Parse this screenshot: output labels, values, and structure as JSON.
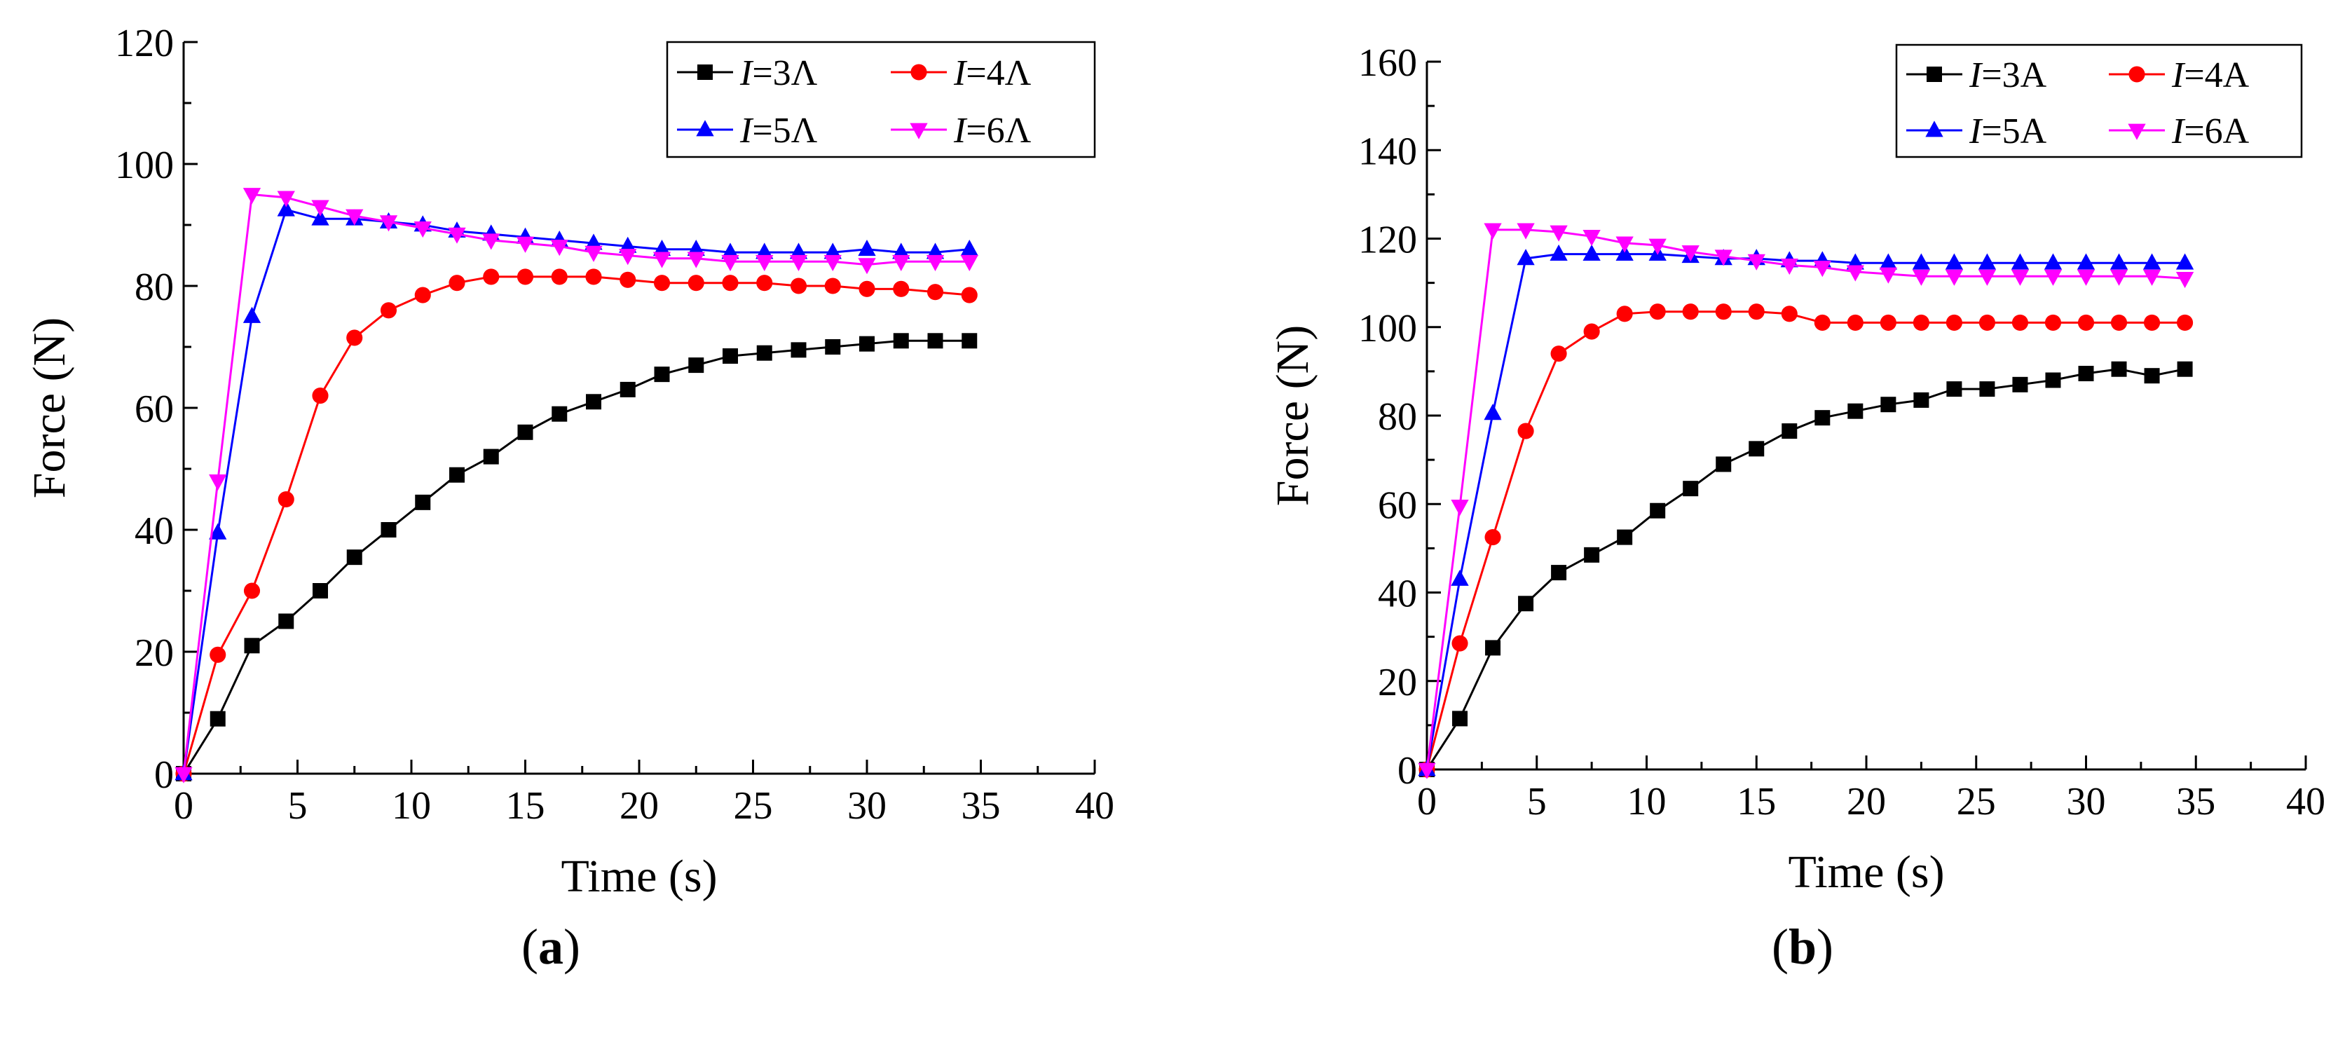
{
  "captions": {
    "a_open": "(",
    "a_letter": "a",
    "a_close": ")",
    "b_open": "(",
    "b_letter": "b",
    "b_close": ")"
  },
  "chart_data": [
    {
      "type": "line",
      "panel": "a",
      "xlabel": "Time (s)",
      "ylabel": "Force (N)",
      "xlim": [
        0,
        40
      ],
      "ylim": [
        0,
        120
      ],
      "xticks": [
        0,
        5,
        10,
        15,
        20,
        25,
        30,
        35,
        40
      ],
      "yticks": [
        0,
        20,
        40,
        60,
        80,
        100,
        120
      ],
      "legend_position": "top-right",
      "grid": false,
      "series": [
        {
          "name": "I=3Λ",
          "label_var": "I",
          "label_rest": "=3Λ",
          "color": "#000000",
          "marker": "square",
          "x": [
            0,
            1.5,
            3,
            4.5,
            6,
            7.5,
            9,
            10.5,
            12,
            13.5,
            15,
            16.5,
            18,
            19.5,
            21,
            22.5,
            24,
            25.5,
            27,
            28.5,
            30,
            31.5,
            33,
            34.5
          ],
          "y": [
            0,
            9,
            21,
            25,
            30,
            35.5,
            40,
            44.5,
            49,
            52,
            56,
            59,
            61,
            63,
            65.5,
            67,
            68.5,
            69,
            69.5,
            70,
            70.5,
            71,
            71,
            71
          ]
        },
        {
          "name": "I=4Λ",
          "label_var": "I",
          "label_rest": "=4Λ",
          "color": "#ff0000",
          "marker": "circle",
          "x": [
            0,
            1.5,
            3,
            4.5,
            6,
            7.5,
            9,
            10.5,
            12,
            13.5,
            15,
            16.5,
            18,
            19.5,
            21,
            22.5,
            24,
            25.5,
            27,
            28.5,
            30,
            31.5,
            33,
            34.5
          ],
          "y": [
            0,
            19.5,
            30,
            45,
            62,
            71.5,
            76,
            78.5,
            80.5,
            81.5,
            81.5,
            81.5,
            81.5,
            81,
            80.5,
            80.5,
            80.5,
            80.5,
            80,
            80,
            79.5,
            79.5,
            79,
            78.5
          ]
        },
        {
          "name": "I=5Λ",
          "label_var": "I",
          "label_rest": "=5Λ",
          "color": "#0000ff",
          "marker": "triangle-up",
          "x": [
            0,
            1.5,
            3,
            4.5,
            6,
            7.5,
            9,
            10.5,
            12,
            13.5,
            15,
            16.5,
            18,
            19.5,
            21,
            22.5,
            24,
            25.5,
            27,
            28.5,
            30,
            31.5,
            33,
            34.5
          ],
          "y": [
            0,
            39.5,
            75,
            92.5,
            91,
            91,
            90.5,
            90,
            89,
            88.5,
            88,
            87.5,
            87,
            86.5,
            86,
            86,
            85.5,
            85.5,
            85.5,
            85.5,
            86,
            85.5,
            85.5,
            86
          ]
        },
        {
          "name": "I=6Λ",
          "label_var": "I",
          "label_rest": "=6Λ",
          "color": "#ff00ff",
          "marker": "triangle-down",
          "x": [
            0,
            1.5,
            3,
            4.5,
            6,
            7.5,
            9,
            10.5,
            12,
            13.5,
            15,
            16.5,
            18,
            19.5,
            21,
            22.5,
            24,
            25.5,
            27,
            28.5,
            30,
            31.5,
            33,
            34.5
          ],
          "y": [
            0,
            48,
            95,
            94.5,
            93,
            91.5,
            90.5,
            89.5,
            88.5,
            87.5,
            87,
            86.5,
            85.5,
            85,
            84.5,
            84.5,
            84,
            84,
            84,
            84,
            83.5,
            84,
            84,
            84
          ]
        }
      ]
    },
    {
      "type": "line",
      "panel": "b",
      "xlabel": "Time (s)",
      "ylabel": "Force (N)",
      "xlim": [
        0,
        40
      ],
      "ylim": [
        0,
        160
      ],
      "xticks": [
        0,
        5,
        10,
        15,
        20,
        25,
        30,
        35,
        40
      ],
      "yticks": [
        0,
        20,
        40,
        60,
        80,
        100,
        120,
        140,
        160
      ],
      "legend_position": "top-right",
      "grid": false,
      "series": [
        {
          "name": "I=3A",
          "label_var": "I",
          "label_rest": "=3A",
          "color": "#000000",
          "marker": "square",
          "x": [
            0,
            1.5,
            3,
            4.5,
            6,
            7.5,
            9,
            10.5,
            12,
            13.5,
            15,
            16.5,
            18,
            19.5,
            21,
            22.5,
            24,
            25.5,
            27,
            28.5,
            30,
            31.5,
            33,
            34.5
          ],
          "y": [
            0,
            11.5,
            27.5,
            37.5,
            44.5,
            48.5,
            52.5,
            58.5,
            63.5,
            69,
            72.5,
            76.5,
            79.5,
            81,
            82.5,
            83.5,
            86,
            86,
            87,
            88,
            89.5,
            90.5,
            89,
            90.5
          ]
        },
        {
          "name": "I=4A",
          "label_var": "I",
          "label_rest": "=4A",
          "color": "#ff0000",
          "marker": "circle",
          "x": [
            0,
            1.5,
            3,
            4.5,
            6,
            7.5,
            9,
            10.5,
            12,
            13.5,
            15,
            16.5,
            18,
            19.5,
            21,
            22.5,
            24,
            25.5,
            27,
            28.5,
            30,
            31.5,
            33,
            34.5
          ],
          "y": [
            0,
            28.5,
            52.5,
            76.5,
            94,
            99,
            103,
            103.5,
            103.5,
            103.5,
            103.5,
            103,
            101,
            101,
            101,
            101,
            101,
            101,
            101,
            101,
            101,
            101,
            101,
            101
          ]
        },
        {
          "name": "I=5A",
          "label_var": "I",
          "label_rest": "=5A",
          "color": "#0000ff",
          "marker": "triangle-up",
          "x": [
            0,
            1.5,
            3,
            4.5,
            6,
            7.5,
            9,
            10.5,
            12,
            13.5,
            15,
            16.5,
            18,
            19.5,
            21,
            22.5,
            24,
            25.5,
            27,
            28.5,
            30,
            31.5,
            33,
            34.5
          ],
          "y": [
            0,
            43,
            80.5,
            115.5,
            116.5,
            116.5,
            116.5,
            116.5,
            116,
            115.5,
            115.5,
            115,
            115,
            114.5,
            114.5,
            114.5,
            114.5,
            114.5,
            114.5,
            114.5,
            114.5,
            114.5,
            114.5,
            114.5
          ]
        },
        {
          "name": "I=6A",
          "label_var": "I",
          "label_rest": "=6A",
          "color": "#ff00ff",
          "marker": "triangle-down",
          "x": [
            0,
            1.5,
            3,
            4.5,
            6,
            7.5,
            9,
            10.5,
            12,
            13.5,
            15,
            16.5,
            18,
            19.5,
            21,
            22.5,
            24,
            25.5,
            27,
            28.5,
            30,
            31.5,
            33,
            34.5
          ],
          "y": [
            0,
            59.5,
            122,
            122,
            121.5,
            120.5,
            119,
            118.5,
            117,
            116,
            115,
            114,
            113.5,
            112.5,
            112,
            111.5,
            111.5,
            111.5,
            111.5,
            111.5,
            111.5,
            111.5,
            111.5,
            111
          ]
        }
      ]
    }
  ]
}
